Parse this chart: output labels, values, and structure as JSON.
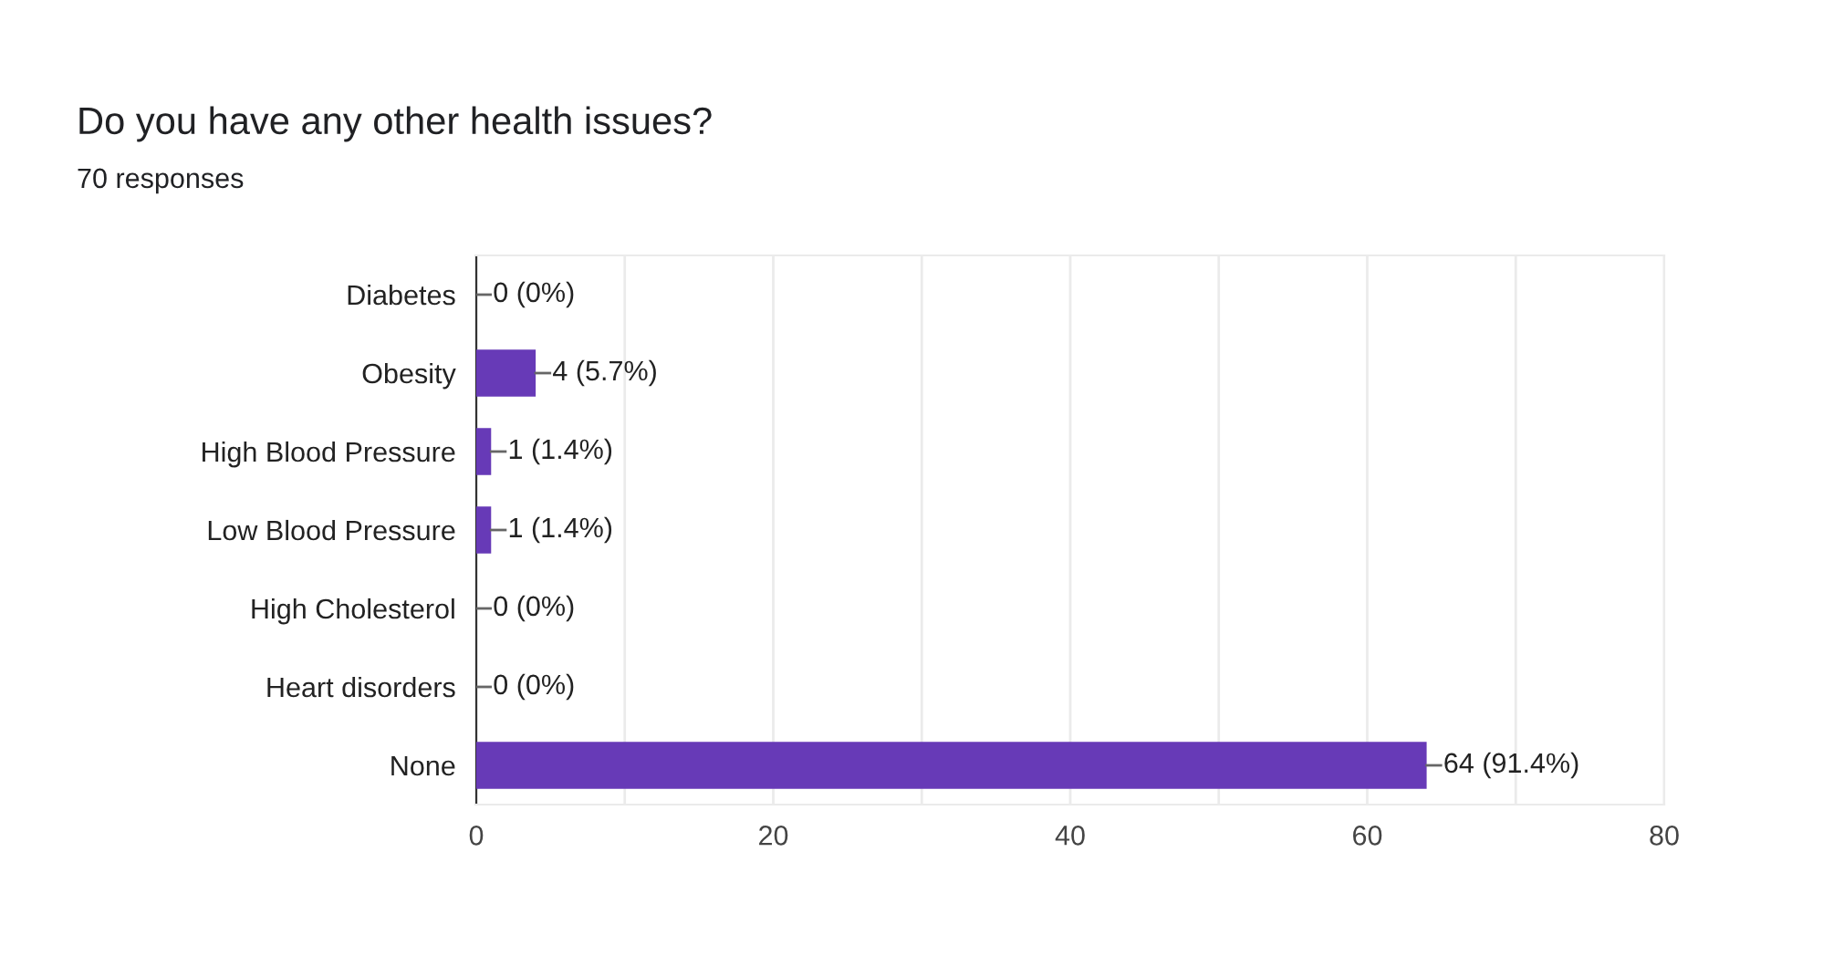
{
  "chart_data": {
    "type": "bar",
    "orientation": "horizontal",
    "title": "Do you have any other health issues?",
    "subtitle": "70 responses",
    "categories": [
      "Diabetes",
      "Obesity",
      "High Blood Pressure",
      "Low Blood Pressure",
      "High Cholesterol",
      "Heart disorders",
      "None"
    ],
    "values": [
      0,
      4,
      1,
      1,
      0,
      0,
      64
    ],
    "value_labels": [
      "0 (0%)",
      "4 (5.7%)",
      "1 (1.4%)",
      "1 (1.4%)",
      "0 (0%)",
      "0 (0%)",
      "64 (91.4%)"
    ],
    "color": "#673ab7",
    "xlim": [
      0,
      80
    ],
    "xticks": [
      0,
      {
        "value": 10,
        "label": null
      },
      20,
      {
        "value": 30,
        "label": null
      },
      40,
      {
        "value": 50,
        "label": null
      },
      60,
      {
        "value": 70,
        "label": null
      },
      80
    ],
    "grid": "x"
  }
}
